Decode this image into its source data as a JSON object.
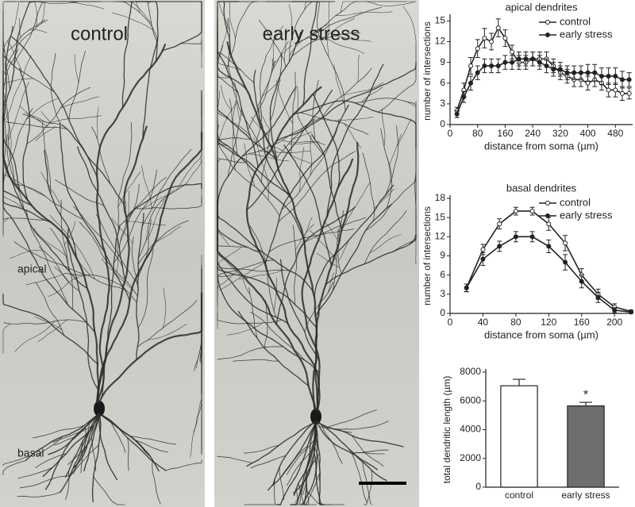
{
  "micrographs": [
    {
      "title": "control",
      "labels": [
        "apical",
        "basal"
      ]
    },
    {
      "title": "early stress"
    }
  ],
  "chart_data": [
    {
      "type": "line",
      "title": "apical dendrites",
      "xlabel": "distance from soma (µm)",
      "ylabel": "number of intersections",
      "x": [
        20,
        40,
        60,
        80,
        100,
        120,
        140,
        160,
        180,
        200,
        220,
        240,
        260,
        280,
        300,
        320,
        340,
        360,
        380,
        400,
        420,
        440,
        460,
        480,
        500,
        520
      ],
      "series": [
        {
          "name": "control",
          "marker": "open",
          "color": "#222222",
          "values": [
            2,
            5,
            8.5,
            11,
            12.5,
            12,
            14,
            12.5,
            10.5,
            9,
            9,
            9.5,
            9.5,
            9.5,
            8.5,
            7.5,
            7,
            6.5,
            6.5,
            6,
            6.5,
            6,
            5,
            5,
            4.5,
            4.5
          ],
          "errors": [
            0.5,
            1,
            1.2,
            1.3,
            1.4,
            1.2,
            1.3,
            1.2,
            1,
            1,
            1,
            1,
            1,
            1,
            1,
            1,
            1,
            1,
            1,
            1,
            1,
            1,
            1,
            1,
            1,
            0.8
          ]
        },
        {
          "name": "early stress",
          "marker": "filled",
          "color": "#222222",
          "values": [
            1.5,
            4,
            6,
            7.5,
            8.5,
            8.5,
            8.5,
            9,
            9,
            9.5,
            9.5,
            9.5,
            9,
            8.5,
            8,
            8,
            7.5,
            7.5,
            7.5,
            7.5,
            7.5,
            7,
            7,
            7,
            6.5,
            6.5
          ],
          "errors": [
            0.5,
            0.8,
            1,
            1,
            1,
            1,
            1,
            1,
            1,
            1,
            1,
            1,
            1,
            1,
            1,
            1,
            1,
            1,
            1,
            1.2,
            1.2,
            1.2,
            1.2,
            1.2,
            1.2,
            1
          ]
        }
      ],
      "xlim": [
        0,
        530
      ],
      "xticks": [
        0,
        80,
        160,
        240,
        320,
        400,
        480
      ],
      "ylim": [
        0,
        15.5
      ],
      "yticks": [
        0,
        3,
        6,
        9,
        12,
        15
      ],
      "legend": "upper right"
    },
    {
      "type": "line",
      "title": "basal dendrites",
      "xlabel": "distance from soma (µm)",
      "ylabel": "number of intersections",
      "x": [
        20,
        40,
        60,
        80,
        100,
        120,
        140,
        160,
        180,
        200,
        220
      ],
      "series": [
        {
          "name": "control",
          "marker": "open",
          "color": "#222222",
          "values": [
            4,
            10,
            14,
            16,
            16,
            14,
            11,
            6,
            3,
            1,
            0.3
          ],
          "errors": [
            0.6,
            0.8,
            0.8,
            0.6,
            0.6,
            1,
            1.2,
            1,
            0.8,
            0.5,
            0.2
          ]
        },
        {
          "name": "early stress",
          "marker": "filled",
          "color": "#222222",
          "values": [
            4,
            8.5,
            10.5,
            12,
            12,
            10.5,
            8,
            5,
            2.5,
            0.5,
            0.2
          ],
          "errors": [
            0.6,
            1,
            0.8,
            0.8,
            0.8,
            1,
            1.2,
            1,
            0.8,
            0.4,
            0.2
          ]
        }
      ],
      "xlim": [
        0,
        222
      ],
      "xticks": [
        0,
        40,
        80,
        120,
        160,
        200
      ],
      "ylim": [
        0,
        18
      ],
      "yticks": [
        0,
        3,
        6,
        9,
        12,
        15,
        18
      ],
      "legend": "upper right"
    },
    {
      "type": "bar",
      "ylabel": "total dendritic length (µm)",
      "categories": [
        "control",
        "early stress"
      ],
      "values": [
        7050,
        5650
      ],
      "errors": [
        450,
        250
      ],
      "colors": [
        "#ffffff",
        "#6e6e6e"
      ],
      "annotations": [
        "",
        "*"
      ],
      "ylim": [
        0,
        8000
      ],
      "yticks": [
        0,
        2000,
        4000,
        6000,
        8000
      ]
    }
  ]
}
